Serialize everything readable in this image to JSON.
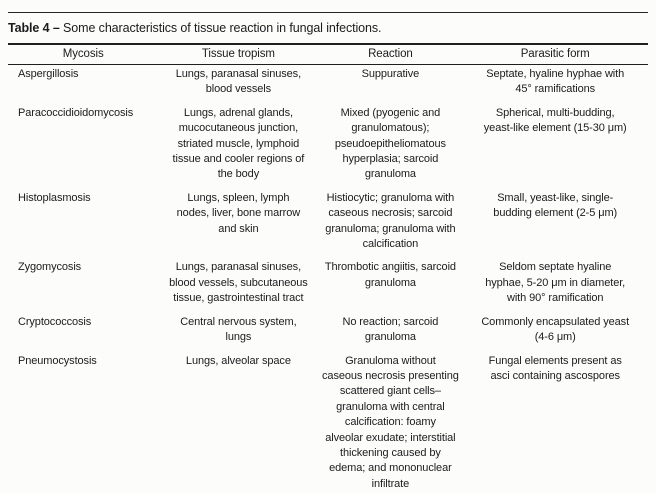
{
  "page": {
    "background": "#fcfcfb",
    "text_color": "#1c1c1c",
    "rule_color": "#1f1f1f"
  },
  "table": {
    "label": "Table 4 –",
    "caption": "Some characteristics of tissue reaction in fungal infections.",
    "columns": {
      "mycosis": "Mycosis",
      "tissue_tropism": "Tissue tropism",
      "reaction": "Reaction",
      "parasitic_form": "Parasitic form"
    },
    "rows": [
      {
        "mycosis": "Aspergillosis",
        "tissue_tropism": "Lungs, paranasal sinuses,\nblood vessels",
        "reaction": "Suppurative",
        "parasitic_form": "Septate, hyaline hyphae with\n45° ramifications"
      },
      {
        "mycosis": "Paracoccidioidomycosis",
        "tissue_tropism": "Lungs, adrenal glands,\nmucocutaneous junction,\nstriated muscle, lymphoid\ntissue and cooler regions of\nthe body",
        "reaction": "Mixed (pyogenic and\ngranulomatous);\npseudoepitheliomatous\nhyperplasia; sarcoid\ngranuloma",
        "parasitic_form": "Spherical, multi-budding,\nyeast-like element (15-30 μm)"
      },
      {
        "mycosis": "Histoplasmosis",
        "tissue_tropism": "Lungs, spleen, lymph\nnodes, liver, bone marrow\nand skin",
        "reaction": "Histiocytic; granuloma with\ncaseous necrosis; sarcoid\ngranuloma; granuloma with\ncalcification",
        "parasitic_form": "Small, yeast-like, single-\nbudding element (2-5 μm)"
      },
      {
        "mycosis": "Zygomycosis",
        "tissue_tropism": "Lungs, paranasal sinuses,\nblood vessels, subcutaneous\ntissue, gastrointestinal tract",
        "reaction": "Thrombotic angiitis, sarcoid\ngranuloma",
        "parasitic_form": "Seldom septate hyaline\nhyphae, 5-20 μm in diameter,\nwith 90° ramification"
      },
      {
        "mycosis": "Cryptococcosis",
        "tissue_tropism": "Central nervous system,\nlungs",
        "reaction": "No reaction; sarcoid\ngranuloma",
        "parasitic_form": "Commonly encapsulated yeast\n(4-6 μm)"
      },
      {
        "mycosis": "Pneumocystosis",
        "tissue_tropism": "Lungs, alveolar space",
        "reaction": "Granuloma without\ncaseous necrosis presenting\nscattered giant cells–\ngranuloma with central\ncalcification: foamy\nalveolar exudate; interstitial\nthickening caused by\nedema; and mononuclear\ninfiltrate",
        "parasitic_form": "Fungal elements present as\nasci containing ascospores"
      }
    ]
  }
}
